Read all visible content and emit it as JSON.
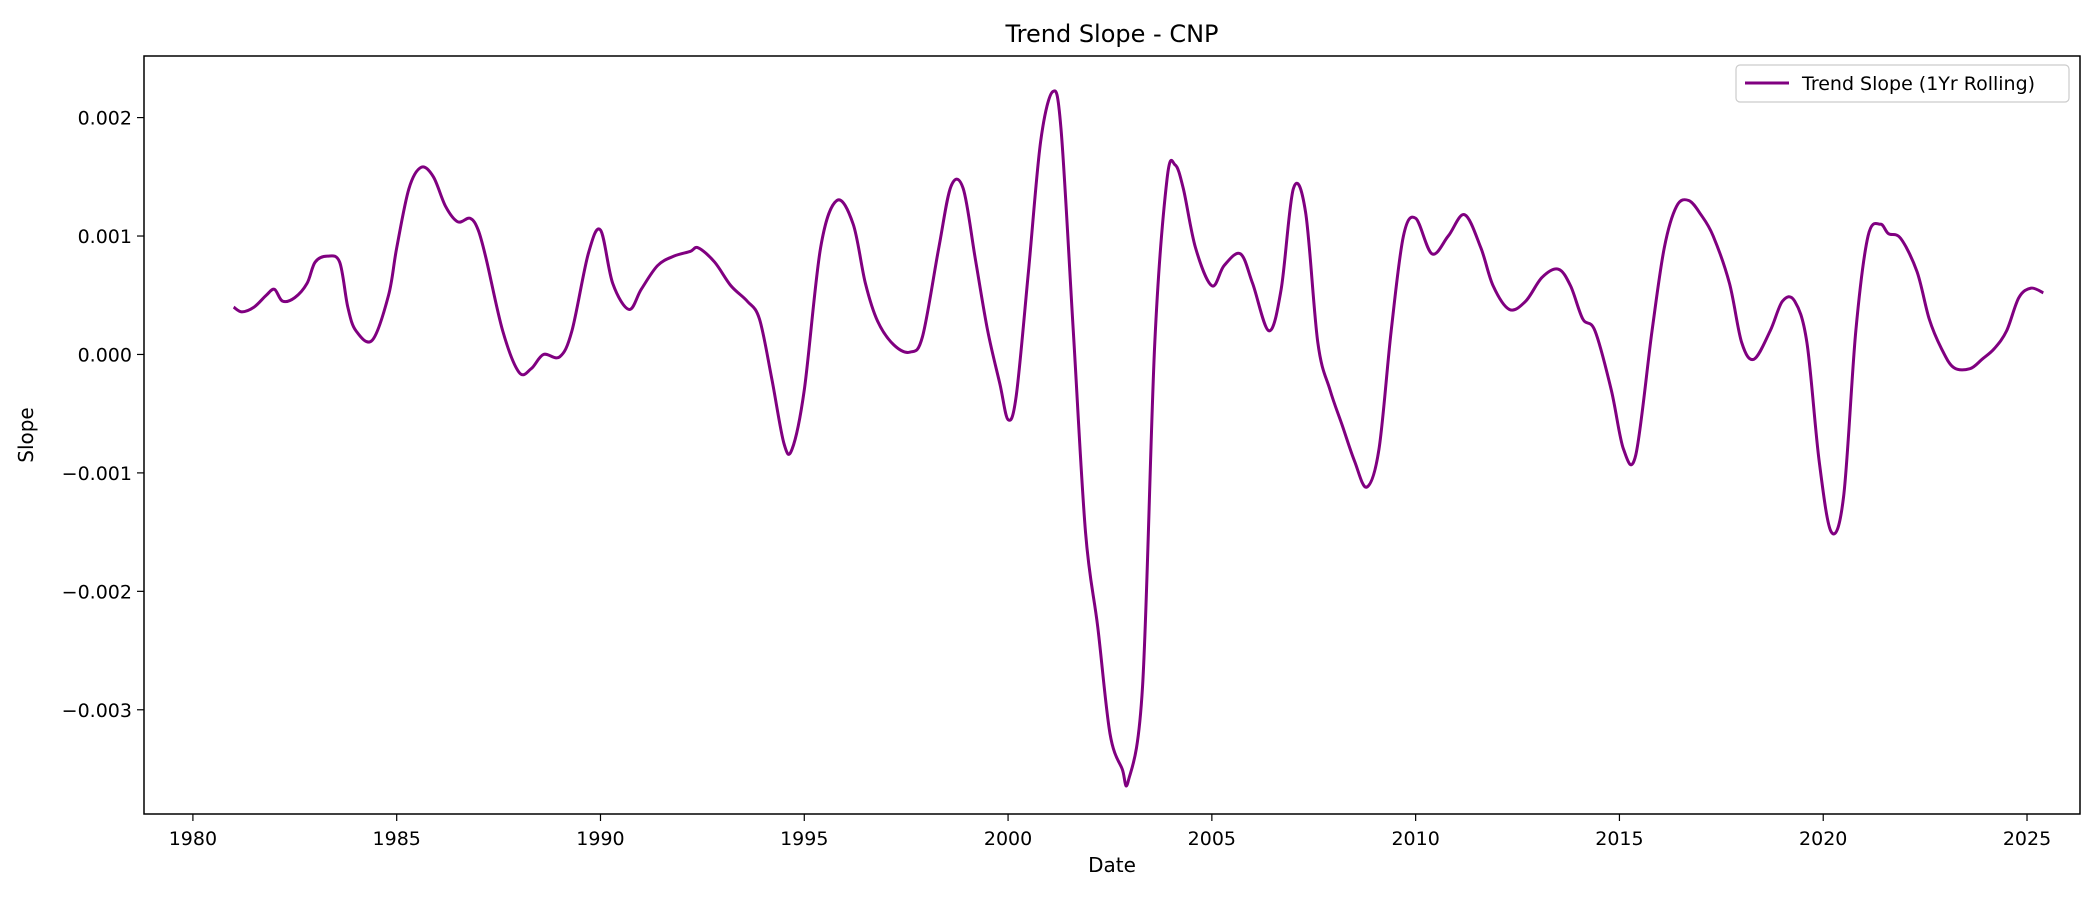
{
  "chart_data": {
    "type": "line",
    "title": "Trend Slope - CNP",
    "xlabel": "Date",
    "ylabel": "Slope",
    "x_axis_kind": "date (year)",
    "xlim": [
      1978.8,
      2026.3
    ],
    "ylim": [
      -0.00388,
      0.00252
    ],
    "x_ticks": [
      1980,
      1985,
      1990,
      1995,
      2000,
      2005,
      2010,
      2015,
      2020,
      2025
    ],
    "x_tick_labels": [
      "1980",
      "1985",
      "1990",
      "1995",
      "2000",
      "2005",
      "2010",
      "2015",
      "2020",
      "2025"
    ],
    "y_ticks": [
      0.002,
      0.001,
      0.0,
      -0.001,
      -0.002,
      -0.003
    ],
    "y_tick_labels": [
      "0.002",
      "0.001",
      "0.000",
      "−0.001",
      "−0.002",
      "−0.003"
    ],
    "grid": false,
    "legend_position": "top-right",
    "series": [
      {
        "name": "Trend Slope (1Yr Rolling)",
        "color": "#800080",
        "x": [
          1981.0,
          1981.2,
          1981.5,
          1981.8,
          1982.0,
          1982.2,
          1982.5,
          1982.8,
          1983.0,
          1983.3,
          1983.6,
          1983.8,
          1984.0,
          1984.4,
          1984.8,
          1985.0,
          1985.3,
          1985.6,
          1985.9,
          1986.2,
          1986.5,
          1986.8,
          1987.0,
          1987.2,
          1987.6,
          1988.0,
          1988.3,
          1988.6,
          1989.0,
          1989.3,
          1989.7,
          1990.0,
          1990.3,
          1990.7,
          1991.0,
          1991.4,
          1991.8,
          1992.2,
          1992.4,
          1992.8,
          1993.2,
          1993.6,
          1993.9,
          1994.2,
          1994.5,
          1994.7,
          1995.0,
          1995.4,
          1995.8,
          1996.2,
          1996.5,
          1996.8,
          1997.2,
          1997.6,
          1997.9,
          1998.3,
          1998.6,
          1998.9,
          1999.2,
          1999.5,
          1999.8,
          2000.0,
          2000.2,
          2000.5,
          2000.8,
          2001.1,
          2001.3,
          2001.6,
          2001.9,
          2002.2,
          2002.5,
          2002.8,
          2002.95,
          2003.3,
          2003.6,
          2003.9,
          2004.1,
          2004.3,
          2004.6,
          2005.0,
          2005.3,
          2005.7,
          2006.0,
          2006.4,
          2006.7,
          2007.0,
          2007.3,
          2007.6,
          2007.9,
          2008.2,
          2008.5,
          2008.8,
          2009.1,
          2009.4,
          2009.7,
          2010.0,
          2010.4,
          2010.8,
          2011.2,
          2011.6,
          2011.9,
          2012.3,
          2012.7,
          2013.1,
          2013.5,
          2013.8,
          2014.1,
          2014.4,
          2014.8,
          2015.1,
          2015.4,
          2015.8,
          2016.1,
          2016.4,
          2016.7,
          2017.0,
          2017.3,
          2017.7,
          2018.0,
          2018.3,
          2018.7,
          2019.0,
          2019.3,
          2019.6,
          2019.9,
          2020.2,
          2020.5,
          2020.8,
          2021.1,
          2021.4,
          2021.6,
          2021.9,
          2022.3,
          2022.6,
          2022.9,
          2023.2,
          2023.6,
          2023.9,
          2024.2,
          2024.5,
          2024.8,
          2025.1,
          2025.4
        ],
        "y": [
          0.0004,
          0.00036,
          0.0004,
          0.0005,
          0.00055,
          0.00045,
          0.00048,
          0.0006,
          0.00078,
          0.00083,
          0.00078,
          0.0004,
          0.0002,
          0.00012,
          0.0005,
          0.0009,
          0.0014,
          0.00158,
          0.0015,
          0.00125,
          0.00112,
          0.00115,
          0.00105,
          0.0008,
          0.0002,
          -0.00015,
          -0.00012,
          0.0,
          -2e-05,
          0.0002,
          0.00085,
          0.00105,
          0.0006,
          0.00038,
          0.00055,
          0.00075,
          0.00083,
          0.00087,
          0.0009,
          0.00078,
          0.00058,
          0.00045,
          0.0003,
          -0.0002,
          -0.00075,
          -0.0008,
          -0.0003,
          0.0009,
          0.0013,
          0.0011,
          0.0006,
          0.00028,
          8e-05,
          2e-05,
          0.00015,
          0.0009,
          0.00142,
          0.0014,
          0.0008,
          0.0002,
          -0.00025,
          -0.00055,
          -0.00035,
          0.0007,
          0.0018,
          0.00222,
          0.0019,
          0.0002,
          -0.0015,
          -0.0023,
          -0.0032,
          -0.0035,
          -0.0036,
          -0.0028,
          0.0001,
          0.00148,
          0.0016,
          0.0014,
          0.0009,
          0.00058,
          0.00075,
          0.00085,
          0.0006,
          0.0002,
          0.00055,
          0.0014,
          0.0012,
          0.0001,
          -0.0003,
          -0.0006,
          -0.0009,
          -0.00112,
          -0.0008,
          0.0002,
          0.001,
          0.00115,
          0.00085,
          0.001,
          0.00118,
          0.0009,
          0.00058,
          0.00038,
          0.00045,
          0.00065,
          0.00072,
          0.00058,
          0.0003,
          0.0002,
          -0.0003,
          -0.0008,
          -0.00085,
          0.0002,
          0.0009,
          0.00125,
          0.0013,
          0.00118,
          0.001,
          0.0006,
          0.0001,
          -4e-05,
          0.0002,
          0.00045,
          0.00045,
          0.0001,
          -0.0009,
          -0.0015,
          -0.0012,
          0.0002,
          0.001,
          0.0011,
          0.00102,
          0.00098,
          0.0007,
          0.0003,
          5e-05,
          -0.00011,
          -0.00012,
          -4e-05,
          5e-05,
          0.0002,
          0.00048,
          0.00056,
          0.00052
        ]
      }
    ]
  }
}
